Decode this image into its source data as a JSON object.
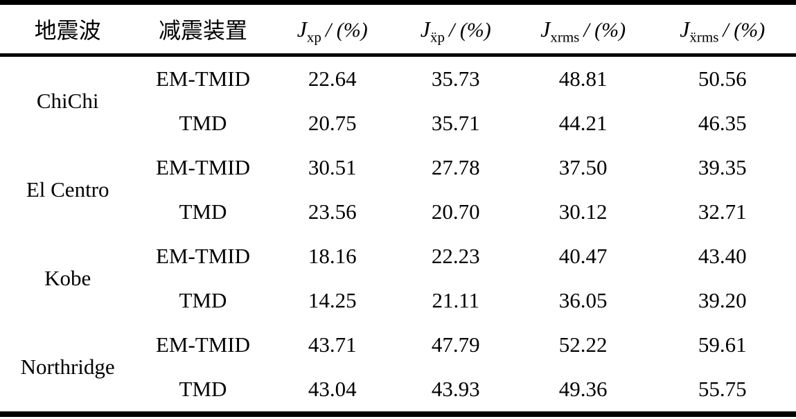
{
  "table": {
    "header": {
      "wave": "地震波",
      "device": "减震装置",
      "j_cols": [
        {
          "symbol": "J",
          "subscript": "xp",
          "unit": "/ (%)"
        },
        {
          "symbol": "J",
          "subscript": "ẍp",
          "unit": "/ (%)"
        },
        {
          "symbol": "J",
          "subscript": "xrms",
          "unit": "/ (%)"
        },
        {
          "symbol": "J",
          "subscript": "ẍrms",
          "unit": "/ (%)"
        }
      ]
    },
    "groups": [
      {
        "wave": "ChiChi",
        "rows": [
          {
            "device": "EM-TMID",
            "values": [
              "22.64",
              "35.73",
              "48.81",
              "50.56"
            ]
          },
          {
            "device": "TMD",
            "values": [
              "20.75",
              "35.71",
              "44.21",
              "46.35"
            ]
          }
        ]
      },
      {
        "wave": "El Centro",
        "rows": [
          {
            "device": "EM-TMID",
            "values": [
              "30.51",
              "27.78",
              "37.50",
              "39.35"
            ]
          },
          {
            "device": "TMD",
            "values": [
              "23.56",
              "20.70",
              "30.12",
              "32.71"
            ]
          }
        ]
      },
      {
        "wave": "Kobe",
        "rows": [
          {
            "device": "EM-TMID",
            "values": [
              "18.16",
              "22.23",
              "40.47",
              "43.40"
            ]
          },
          {
            "device": "TMD",
            "values": [
              "14.25",
              "21.11",
              "36.05",
              "39.20"
            ]
          }
        ]
      },
      {
        "wave": "Northridge",
        "rows": [
          {
            "device": "EM-TMID",
            "values": [
              "43.71",
              "47.79",
              "52.22",
              "59.61"
            ]
          },
          {
            "device": "TMD",
            "values": [
              "43.04",
              "43.93",
              "49.36",
              "55.75"
            ]
          }
        ]
      }
    ]
  },
  "colors": {
    "text": "#000000",
    "background": "#ffffff",
    "rule": "#000000"
  }
}
